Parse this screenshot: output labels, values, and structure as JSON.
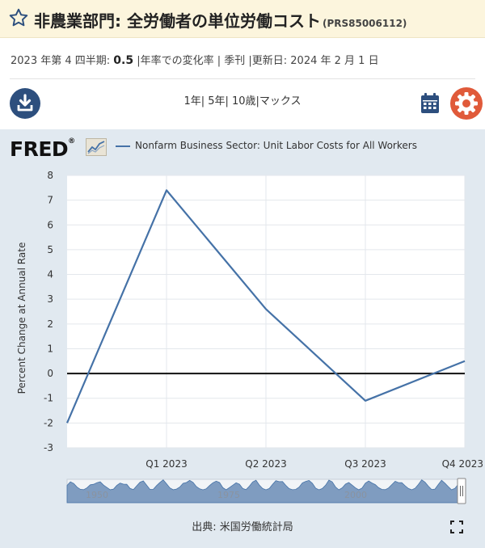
{
  "header": {
    "title": "非農業部門: 全労働者の単位労働コスト",
    "series_id": "(PRS85006112)"
  },
  "summary": {
    "period": "2023 年第 4 四半期:",
    "value": "0.5",
    "units": "|年率での変化率 | 季刊 |更新日: 2024 年 2 月 1 日"
  },
  "toolbar": {
    "range_links": "1年| 5年| 10歳|マックス"
  },
  "logo": {
    "text": "FRED",
    "mark": "®"
  },
  "chart_data": {
    "type": "line",
    "ylabel": "Percent Change at Annual Rate",
    "ylim": [
      -3,
      8
    ],
    "yticks": [
      "8",
      "7",
      "6",
      "5",
      "4",
      "3",
      "2",
      "1",
      "0",
      "-1",
      "-2",
      "-3"
    ],
    "xticks": [
      "Q1 2023",
      "Q2 2023",
      "Q3 2023",
      "Q4 2023"
    ],
    "x": [
      "2022-10-01",
      "2023-01-01",
      "2023-04-01",
      "2023-07-01",
      "2023-10-01"
    ],
    "series": [
      {
        "name": "Nonfarm Business Sector: Unit Labor Costs for All Workers",
        "values": [
          -2.0,
          7.4,
          2.6,
          -1.1,
          0.5
        ],
        "color": "#4572a7"
      }
    ],
    "zero_line": true,
    "grid": true,
    "navigator_labels": [
      "1950",
      "1975",
      "2000"
    ]
  },
  "footer": {
    "source": "出典: 米国労働統計局"
  }
}
